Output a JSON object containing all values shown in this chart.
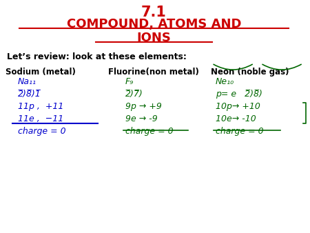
{
  "title_line1": "7.1",
  "title_line2": "COMPOUND, ATOMS AND",
  "title_line3": "IONS",
  "title_color": "#cc0000",
  "subtitle": "Let’s review: look at these elements:",
  "subtitle_color": "#000000",
  "col_headers": [
    "Sodium (metal)",
    "Fluorine(non metal)",
    "Neon (noble gas)"
  ],
  "col_header_color": "#000000",
  "handwriting_color_blue": "#0000cc",
  "handwriting_color_green": "#006600",
  "bg_color": "#ffffff"
}
